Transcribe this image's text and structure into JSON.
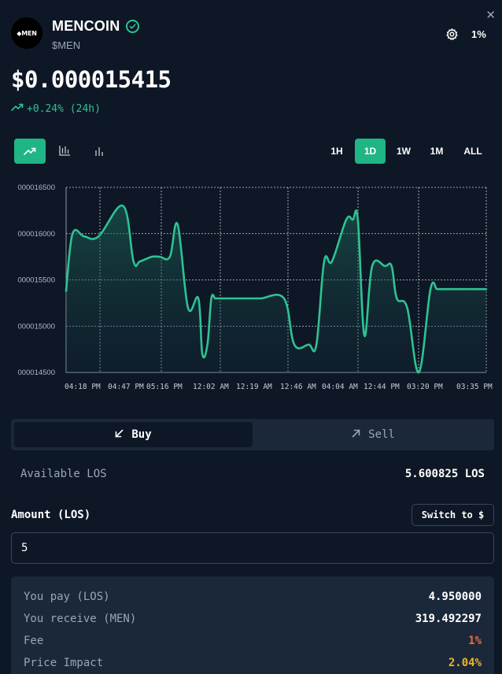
{
  "header": {
    "logo_text": "◆MEN",
    "coin_name": "MENCOIN",
    "ticker": "$MEN",
    "slippage": "1%",
    "close_glyph": "✕",
    "icons": [
      "verified-check-icon",
      "gear-icon",
      "close-icon"
    ]
  },
  "price": {
    "value": "$0.000015415",
    "change": "+0.24% (24h)",
    "change_color": "#2ec293"
  },
  "chart_types": [
    {
      "name": "line-chart",
      "active": true
    },
    {
      "name": "candlestick-chart",
      "active": false
    },
    {
      "name": "bar-chart",
      "active": false
    }
  ],
  "timeframes": [
    {
      "label": "1H",
      "active": false
    },
    {
      "label": "1D",
      "active": true
    },
    {
      "label": "1W",
      "active": false
    },
    {
      "label": "1M",
      "active": false
    },
    {
      "label": "ALL",
      "active": false
    }
  ],
  "chart_data": {
    "type": "area",
    "ylim": [
      1.45e-05,
      1.65e-05
    ],
    "y_ticks": [
      "000014500",
      "000015000",
      "000015500",
      "000016000",
      "000016500"
    ],
    "x_ticks": [
      "04:18 PM",
      "04:47 PM",
      "05:16 PM",
      "12:02 AM",
      "12:19 AM",
      "12:46 AM",
      "04:04 AM",
      "12:44 PM",
      "03:20 PM",
      "03:35 PM"
    ],
    "grid": true,
    "line_color": "#2ec293",
    "x": [
      0,
      0.25,
      0.7,
      1.25,
      2.2,
      2.6,
      2.85,
      3.3,
      3.6,
      4.0,
      4.3,
      4.7,
      5.1,
      5.25,
      5.45,
      5.6,
      5.75,
      5.9,
      6.05,
      6.25,
      6.5,
      7.0,
      7.5,
      8.4,
      8.8,
      9.35,
      9.65,
      9.95,
      10.25,
      10.8,
      11.05,
      11.25,
      11.5,
      11.8,
      12.3,
      12.55,
      12.75,
      13.15,
      13.6,
      14.05,
      14.3,
      14.5,
      14.9,
      15.2,
      16.2
    ],
    "y": [
      1.538e-05,
      1.6e-05,
      1.597e-05,
      1.597e-05,
      1.63e-05,
      1.57e-05,
      1.57e-05,
      1.575e-05,
      1.575e-05,
      1.575e-05,
      1.61e-05,
      1.52e-05,
      1.53e-05,
      1.47e-05,
      1.48e-05,
      1.53e-05,
      1.53e-05,
      1.53e-05,
      1.53e-05,
      1.53e-05,
      1.53e-05,
      1.53e-05,
      1.53e-05,
      1.53e-05,
      1.48e-05,
      1.48e-05,
      1.48e-05,
      1.57e-05,
      1.57e-05,
      1.615e-05,
      1.615e-05,
      1.615e-05,
      1.49e-05,
      1.565e-05,
      1.565e-05,
      1.565e-05,
      1.53e-05,
      1.52e-05,
      1.45e-05,
      1.54e-05,
      1.54e-05,
      1.54e-05,
      1.54e-05,
      1.54e-05,
      1.54e-05
    ]
  },
  "trade": {
    "buy_label": "Buy",
    "sell_label": "Sell",
    "available_label": "Available LOS",
    "available_value": "5.600825 LOS",
    "amount_label": "Amount (LOS)",
    "switch_label": "Switch to $",
    "amount_value": "5"
  },
  "summary": {
    "you_pay_label": "You pay (LOS)",
    "you_pay_value": "4.950000",
    "you_receive_label": "You receive (MEN)",
    "you_receive_value": "319.492297",
    "fee_label": "Fee",
    "fee_value": "1%",
    "impact_label": "Price Impact",
    "impact_value": "2.04%"
  }
}
